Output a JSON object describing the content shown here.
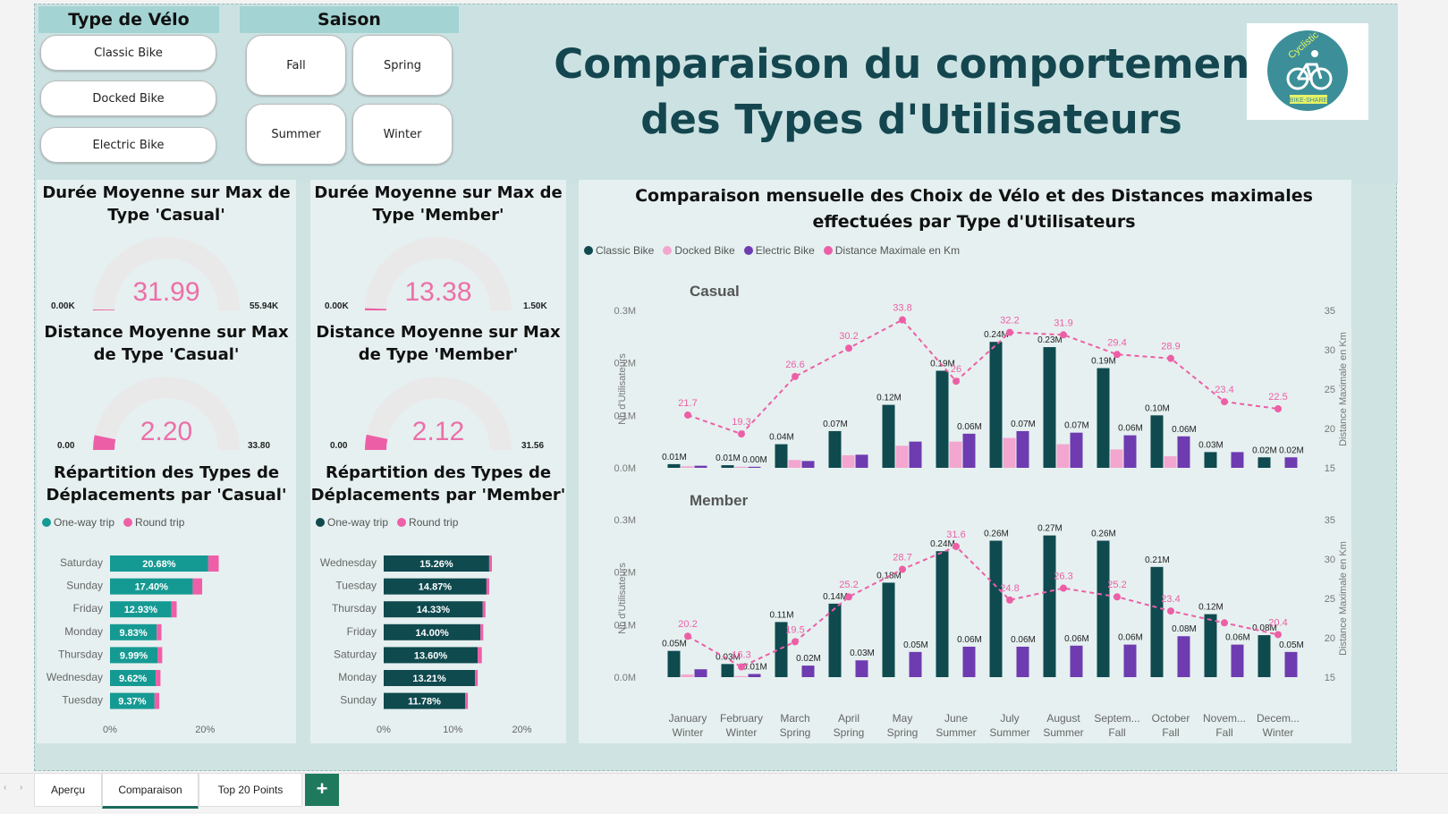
{
  "slicers": {
    "bike_type": {
      "title": "Type de Vélo",
      "options": [
        "Classic Bike",
        "Docked Bike",
        "Electric Bike"
      ]
    },
    "season": {
      "title": "Saison",
      "options": [
        "Fall",
        "Spring",
        "Summer",
        "Winter"
      ]
    }
  },
  "header": {
    "title_line1": "Comparaison du comportement",
    "title_line2": "des Types d'Utilisateurs",
    "logo_text": "Cyclistic",
    "logo_sub": "BIKE-SHARE"
  },
  "gauges": {
    "casual_duration": {
      "title": "Durée Moyenne sur Max de Type 'Casual'",
      "value": "31.99",
      "min": "0.00K",
      "max": "55.94K",
      "fraction": 0.0006
    },
    "member_duration": {
      "title": "Durée Moyenne sur Max de Type 'Member'",
      "value": "13.38",
      "min": "0.00K",
      "max": "1.50K",
      "fraction": 0.009
    },
    "casual_distance": {
      "title": "Distance Moyenne sur Max de Type 'Casual'",
      "value": "2.20",
      "min": "0.00",
      "max": "33.80",
      "fraction": 0.065
    },
    "member_distance": {
      "title": "Distance Moyenne sur Max de Type 'Member'",
      "value": "2.12",
      "min": "0.00",
      "max": "31.56",
      "fraction": 0.067
    }
  },
  "trip_charts": {
    "legend": {
      "one_way": "One-way trip",
      "round": "Round trip"
    },
    "casual": {
      "title": "Répartition des Types de Déplacements par 'Casual'",
      "axis_ticks": [
        "0%",
        "20%"
      ],
      "rows": [
        {
          "day": "Saturday",
          "label": "20.68%",
          "one_way": 20.68,
          "round": 2.2
        },
        {
          "day": "Sunday",
          "label": "17.40%",
          "one_way": 17.4,
          "round": 2.0
        },
        {
          "day": "Friday",
          "label": "12.93%",
          "one_way": 12.93,
          "round": 1.1
        },
        {
          "day": "Monday",
          "label": "9.83%",
          "one_way": 9.83,
          "round": 1.0
        },
        {
          "day": "Thursday",
          "label": "9.99%",
          "one_way": 9.99,
          "round": 1.0
        },
        {
          "day": "Wednesday",
          "label": "9.62%",
          "one_way": 9.62,
          "round": 1.0
        },
        {
          "day": "Tuesday",
          "label": "9.37%",
          "one_way": 9.37,
          "round": 1.0
        }
      ]
    },
    "member": {
      "title": "Répartition des Types de Déplacements par 'Member'",
      "axis_ticks": [
        "0%",
        "10%",
        "20%"
      ],
      "rows": [
        {
          "day": "Wednesday",
          "label": "15.26%",
          "one_way": 15.26,
          "round": 0.4
        },
        {
          "day": "Tuesday",
          "label": "14.87%",
          "one_way": 14.87,
          "round": 0.4
        },
        {
          "day": "Thursday",
          "label": "14.33%",
          "one_way": 14.33,
          "round": 0.4
        },
        {
          "day": "Friday",
          "label": "14.00%",
          "one_way": 14.0,
          "round": 0.4
        },
        {
          "day": "Saturday",
          "label": "13.60%",
          "one_way": 13.6,
          "round": 0.6
        },
        {
          "day": "Monday",
          "label": "13.21%",
          "one_way": 13.21,
          "round": 0.4
        },
        {
          "day": "Sunday",
          "label": "11.78%",
          "one_way": 11.78,
          "round": 0.4
        }
      ]
    }
  },
  "chart_data": {
    "type": "bar",
    "title": "Comparaison mensuelle des Choix de Vélo et des Distances maximales effectuées par Type d'Utilisateurs",
    "legend": [
      "Classic Bike",
      "Docked Bike",
      "Electric Bike",
      "Distance Maximale en Km"
    ],
    "ylabel": "Nb d'Utilisateurs",
    "y2label": "Distance Maximale en Km",
    "y_ticks": [
      "0.0M",
      "0.1M",
      "0.2M",
      "0.3M"
    ],
    "y2_ticks": [
      "15",
      "20",
      "25",
      "30",
      "35"
    ],
    "ylim": [
      0,
      0.3
    ],
    "y2lim": [
      15,
      35
    ],
    "categories": [
      [
        "January",
        "Winter"
      ],
      [
        "February",
        "Winter"
      ],
      [
        "March",
        "Spring"
      ],
      [
        "April",
        "Spring"
      ],
      [
        "May",
        "Spring"
      ],
      [
        "June",
        "Summer"
      ],
      [
        "July",
        "Summer"
      ],
      [
        "August",
        "Summer"
      ],
      [
        "Septem...",
        "Fall"
      ],
      [
        "October",
        "Fall"
      ],
      [
        "Novem...",
        "Fall"
      ],
      [
        "Decem...",
        "Winter"
      ]
    ],
    "panels": [
      {
        "name": "Casual",
        "classic": [
          0.007,
          0.005,
          0.045,
          0.07,
          0.12,
          0.185,
          0.24,
          0.23,
          0.19,
          0.1,
          0.03,
          0.02
        ],
        "classic_labels": [
          "0.01M",
          "0.01M",
          "0.04M",
          "0.07M",
          "0.12M",
          "0.19M",
          "0.24M",
          "0.23M",
          "0.19M",
          "0.10M",
          "0.03M",
          "0.02M"
        ],
        "docked": [
          0.003,
          0.002,
          0.015,
          0.024,
          0.042,
          0.05,
          0.057,
          0.045,
          0.035,
          0.022,
          0,
          0
        ],
        "electric": [
          0.004,
          0.002,
          0.013,
          0.025,
          0.05,
          0.065,
          0.07,
          0.067,
          0.062,
          0.06,
          0.03,
          0.02
        ],
        "electric_labels": [
          "",
          "0.00M",
          "",
          "",
          "",
          "0.06M",
          "0.07M",
          "0.07M",
          "0.06M",
          "0.06M",
          "",
          "0.02M"
        ],
        "distance": [
          21.7,
          19.3,
          26.6,
          30.2,
          33.8,
          26.0,
          32.2,
          31.9,
          29.4,
          28.9,
          23.4,
          22.5
        ]
      },
      {
        "name": "Member",
        "classic": [
          0.05,
          0.025,
          0.105,
          0.14,
          0.18,
          0.24,
          0.26,
          0.27,
          0.26,
          0.21,
          0.12,
          0.08
        ],
        "classic_labels": [
          "0.05M",
          "0.03M",
          "0.11M",
          "0.14M",
          "0.18M",
          "0.24M",
          "0.26M",
          "0.27M",
          "0.26M",
          "0.21M",
          "0.12M",
          "0.08M"
        ],
        "docked": [
          0.005,
          0.002,
          0,
          0,
          0,
          0,
          0,
          0,
          0,
          0,
          0,
          0
        ],
        "electric": [
          0.015,
          0.006,
          0.022,
          0.032,
          0.048,
          0.058,
          0.058,
          0.06,
          0.062,
          0.078,
          0.062,
          0.048
        ],
        "electric_labels": [
          "",
          "0.01M",
          "0.02M",
          "0.03M",
          "0.05M",
          "0.06M",
          "0.06M",
          "0.06M",
          "0.06M",
          "0.08M",
          "0.06M",
          "0.05M"
        ],
        "distance": [
          20.2,
          16.3,
          19.5,
          25.2,
          28.7,
          31.6,
          24.8,
          26.3,
          25.2,
          23.4,
          21.9,
          20.4
        ],
        "distance_labels": [
          "20.2",
          "16.3",
          "19.5",
          "25.2",
          "28.7",
          "31.6",
          "24.8",
          "26.3",
          "25.2",
          "23.4",
          "",
          "20.4"
        ]
      }
    ]
  },
  "colors": {
    "classic": "#0f4a4f",
    "docked": "#f3a6cf",
    "electric": "#6e3bb0",
    "distance": "#ec5fa6",
    "one_way_casual": "#159a93",
    "one_way_member": "#0f4a4f",
    "round": "#ef5fa7"
  },
  "tabs": {
    "items": [
      "Aperçu",
      "Comparaison",
      "Top 20 Points"
    ],
    "active": "Comparaison",
    "add": "+"
  }
}
